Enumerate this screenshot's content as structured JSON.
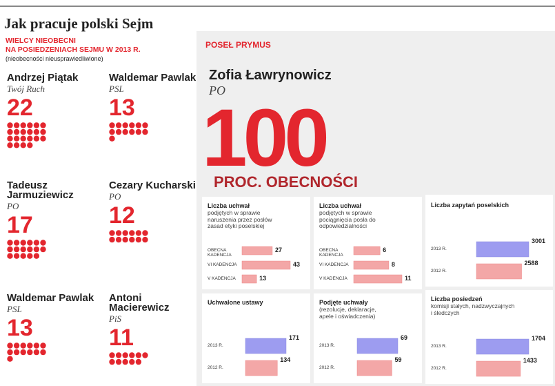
{
  "header": {
    "title": "Jak pracuje polski Sejm"
  },
  "absent": {
    "title": "WIELCY NIEOBECNI",
    "subtitle": "NA POSIEDZENIACH SEJMU W 2013 R.",
    "note": "(nieobecności nieusprawiedliwione)",
    "people": [
      {
        "name": "Andrzej Piątak",
        "party": "Twój Ruch",
        "days": 22
      },
      {
        "name": "Waldemar Pawlak",
        "party": "PSL",
        "days": 13
      },
      {
        "name": "Tadeusz Jarmuziewicz",
        "party": "PO",
        "days": 17
      },
      {
        "name": "Cezary Kucharski",
        "party": "PO",
        "days": 12
      },
      {
        "name": "Waldemar Pawlak",
        "party": "PSL",
        "days": 13
      },
      {
        "name": "Antoni Macierewicz",
        "party": "PiS",
        "days": 11
      }
    ]
  },
  "top": {
    "label": "POSEŁ PRYMUS",
    "name": "Zofia Ławrynowicz",
    "party": "PO",
    "value": 100,
    "caption": "PROC. OBECNOŚCI"
  },
  "panels": [
    {
      "title": "Liczba uchwał",
      "subtitle": "podjętych w sprawie naruszenia przez posłów zasad etyki poselskiej",
      "rows": [
        {
          "label": "OBECNA KADENCJA",
          "value": 27
        },
        {
          "label": "VI KADENCJA",
          "value": 43
        },
        {
          "label": "V KADENCJA",
          "value": 13
        }
      ]
    },
    {
      "title": "Liczba uchwał",
      "subtitle": "podjętych w sprawie pociągnięcia posła do odpowiedzialności",
      "rows": [
        {
          "label": "OBECNA KADENCJA",
          "value": 6
        },
        {
          "label": "VI KADENCJA",
          "value": 8
        },
        {
          "label": "V KADENCJA",
          "value": 11
        }
      ]
    },
    {
      "title": "Liczba zapytań poselskich",
      "rows": [
        {
          "label": "2013 R.",
          "value": 3001
        },
        {
          "label": "2012 R.",
          "value": 2588
        }
      ]
    },
    {
      "title": "Uchwalone ustawy",
      "rows": [
        {
          "label": "2013 R.",
          "value": 171
        },
        {
          "label": "2012 R.",
          "value": 134
        }
      ]
    },
    {
      "title": "Podjęte uchwały",
      "subtitle": "(rezolucje, deklaracje, apele i oświadczenia)",
      "rows": [
        {
          "label": "2013 R.",
          "value": 69
        },
        {
          "label": "2012 R.",
          "value": 59
        }
      ]
    },
    {
      "title": "Liczba posiedzeń",
      "subtitle": "komisji stałych, nadzwyczajnych i śledczych",
      "rows": [
        {
          "label": "2013 R.",
          "value": 1704
        },
        {
          "label": "2012 R.",
          "value": 1433
        }
      ]
    }
  ]
}
